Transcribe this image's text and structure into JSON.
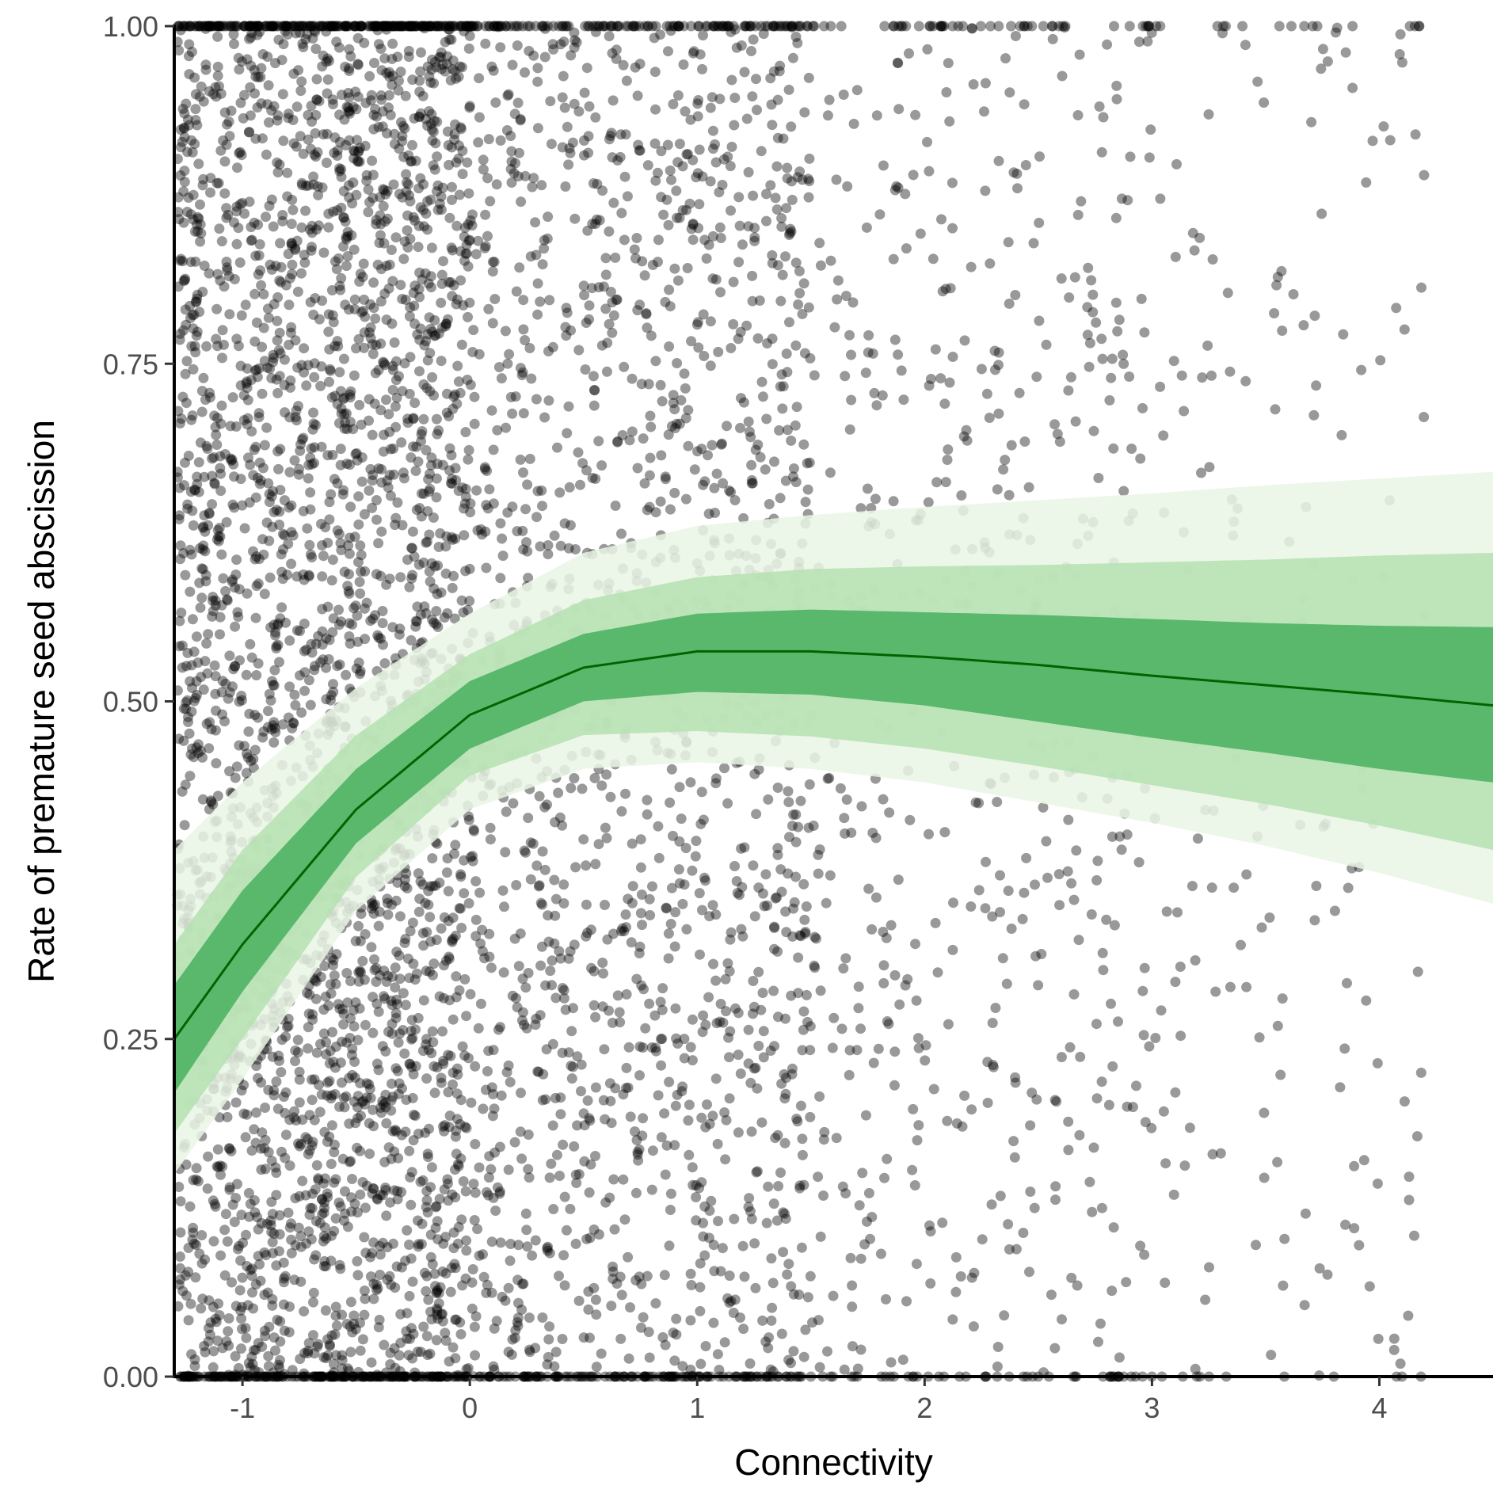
{
  "chart_data": {
    "type": "scatter",
    "title": "",
    "xlabel": "Connectivity",
    "ylabel": "Rate of premature seed abscission",
    "xlim": [
      -1.3,
      4.5
    ],
    "ylim": [
      0,
      1
    ],
    "x_ticks": [
      "-1",
      "0",
      "1",
      "2",
      "3",
      "4"
    ],
    "x_tick_values": [
      -1,
      0,
      1,
      2,
      3,
      4
    ],
    "y_ticks": [
      "0.00",
      "0.25",
      "0.50",
      "0.75",
      "1.00"
    ],
    "y_tick_values": [
      0,
      0.25,
      0.5,
      0.75,
      1
    ],
    "grid": false,
    "legend": "none",
    "point_color": "#000000",
    "colors": {
      "fit_line": "#006400",
      "band_inner": "#5ab86c",
      "band_middle": "#b5e2b0",
      "band_outer": "#eaf6e5"
    },
    "fit": {
      "x": [
        -1.3,
        -1.0,
        -0.5,
        0.0,
        0.5,
        1.0,
        1.5,
        2.0,
        2.5,
        3.0,
        3.5,
        4.0,
        4.5
      ],
      "y": [
        0.25,
        0.32,
        0.42,
        0.49,
        0.525,
        0.537,
        0.537,
        0.533,
        0.527,
        0.519,
        0.512,
        0.505,
        0.497
      ],
      "inner_lo": [
        0.21,
        0.285,
        0.395,
        0.465,
        0.5,
        0.507,
        0.505,
        0.497,
        0.485,
        0.473,
        0.462,
        0.45,
        0.44
      ],
      "inner_hi": [
        0.29,
        0.36,
        0.45,
        0.515,
        0.55,
        0.565,
        0.568,
        0.566,
        0.564,
        0.561,
        0.558,
        0.556,
        0.555
      ],
      "mid_lo": [
        0.18,
        0.25,
        0.37,
        0.445,
        0.475,
        0.478,
        0.474,
        0.465,
        0.452,
        0.438,
        0.424,
        0.408,
        0.39
      ],
      "mid_hi": [
        0.32,
        0.39,
        0.475,
        0.535,
        0.575,
        0.592,
        0.598,
        0.6,
        0.601,
        0.603,
        0.605,
        0.608,
        0.61
      ],
      "out_lo": [
        0.15,
        0.22,
        0.345,
        0.42,
        0.45,
        0.455,
        0.45,
        0.44,
        0.425,
        0.41,
        0.393,
        0.373,
        0.35
      ],
      "out_hi": [
        0.39,
        0.44,
        0.51,
        0.565,
        0.61,
        0.63,
        0.638,
        0.644,
        0.649,
        0.654,
        0.66,
        0.665,
        0.67
      ]
    },
    "points": {
      "count": 6000,
      "note_density": "highest for x between -1 and 1, sparse beyond 3.5; many points stacked at y = 0 and y = 1"
    }
  }
}
